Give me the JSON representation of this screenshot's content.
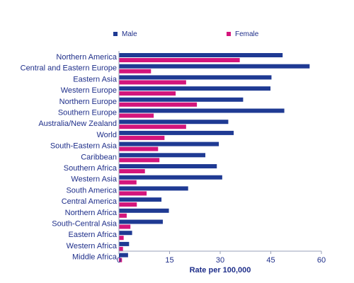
{
  "chart_data": {
    "type": "bar",
    "orientation": "horizontal",
    "title": "",
    "xlabel": "Rate per 100,000",
    "ylabel": "",
    "xlim": [
      0,
      60
    ],
    "x_ticks": [
      0,
      15,
      30,
      45,
      60
    ],
    "grid": false,
    "legend_position": "top",
    "categories": [
      "Northern America",
      "Central and Eastern Europe",
      "Eastern Asia",
      "Western Europe",
      "Northern Europe",
      "Southern Europe",
      "Australia/New Zealand",
      "World",
      "South-Eastern Asia",
      "Caribbean",
      "Southern Africa",
      "Western Asia",
      "South America",
      "Central America",
      "Northern Africa",
      "South-Central Asia",
      "Eastern Africa",
      "Western Africa",
      "Middle Africa"
    ],
    "series": [
      {
        "name": "Male",
        "color": "#1f3a93",
        "values": [
          48.5,
          56.5,
          45.2,
          44.9,
          36.8,
          49.0,
          32.4,
          34.0,
          29.6,
          25.6,
          29.0,
          30.6,
          20.5,
          12.6,
          14.8,
          13.0,
          3.9,
          3.0,
          2.7
        ]
      },
      {
        "name": "Female",
        "color": "#d4157c",
        "values": [
          35.8,
          9.5,
          19.9,
          16.8,
          23.1,
          10.3,
          19.9,
          13.5,
          11.6,
          12.0,
          7.7,
          5.2,
          8.2,
          5.3,
          2.3,
          3.4,
          1.4,
          1.2,
          0.9
        ]
      }
    ]
  }
}
